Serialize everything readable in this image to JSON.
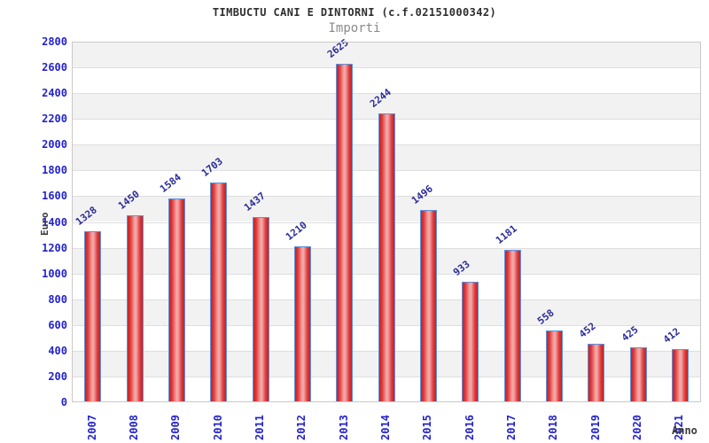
{
  "title": "TIMBUCTU CANI E DINTORNI (c.f.02151000342)",
  "subtitle": "Importi",
  "chart_data": {
    "type": "bar",
    "title": "TIMBUCTU CANI E DINTORNI (c.f.02151000342)",
    "subtitle": "Importi",
    "xlabel": "Anno",
    "ylabel": "Euro",
    "categories": [
      "2007",
      "2008",
      "2009",
      "2010",
      "2011",
      "2012",
      "2013",
      "2014",
      "2015",
      "2016",
      "2017",
      "2018",
      "2019",
      "2020",
      "2021"
    ],
    "values": [
      1328,
      1450,
      1584,
      1703,
      1437,
      1210,
      2625,
      2244,
      1496,
      933,
      1181,
      558,
      452,
      425,
      412
    ],
    "ylim": [
      0,
      2800
    ],
    "ytick_step": 200,
    "grid": true,
    "background_bands": true,
    "legend_position": "none"
  },
  "colors": {
    "tick_label": "#2323cc",
    "value_label": "#2b2b96",
    "band_gray": "#f2f2f2",
    "band_white": "#ffffff",
    "gridline": "#dedede",
    "frame": "#c9c9c9",
    "bar_border": "#5b93e0",
    "title_text": "#2e2e2e",
    "subtitle_text": "#8a8a8a",
    "axis_title_text": "#3a3a3a"
  }
}
